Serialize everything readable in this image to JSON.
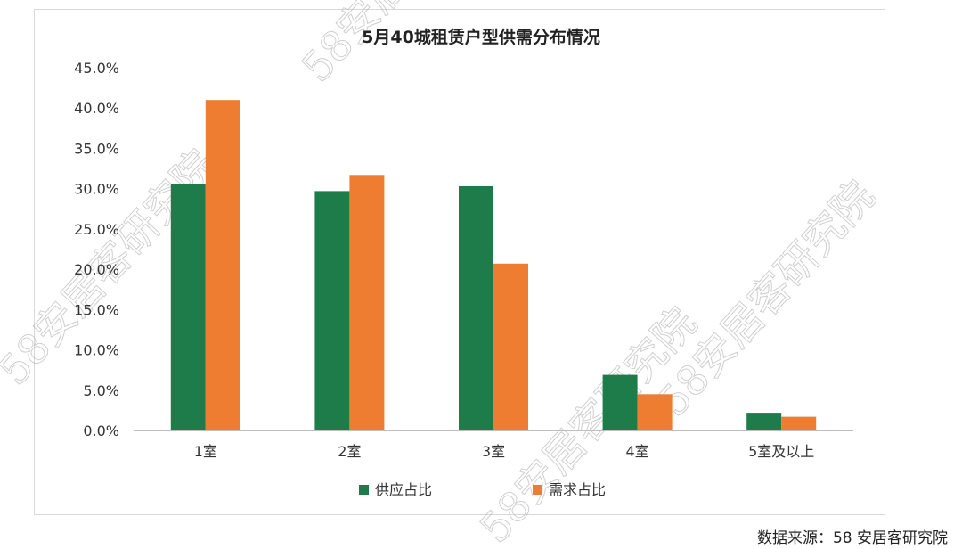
{
  "source_note": "数据来源：58 安居客研究院",
  "watermark": "58安居客研究院",
  "colors": {
    "supply": "#1e7b4a",
    "demand": "#ee7d31",
    "axis": "#bfbfbf"
  },
  "chart_data": {
    "type": "bar",
    "title": "5月40城租赁户型供需分布情况",
    "categories": [
      "1室",
      "2室",
      "3室",
      "4室",
      "5室及以上"
    ],
    "series": [
      {
        "name": "供应占比",
        "values": [
          30.6,
          29.7,
          30.3,
          6.9,
          2.2
        ]
      },
      {
        "name": "需求占比",
        "values": [
          41.0,
          31.7,
          20.7,
          4.5,
          1.7
        ]
      }
    ],
    "ylim": [
      0,
      45
    ],
    "yticks": [
      "0.0%",
      "5.0%",
      "10.0%",
      "15.0%",
      "20.0%",
      "25.0%",
      "30.0%",
      "35.0%",
      "40.0%",
      "45.0%"
    ],
    "xlabel": "",
    "ylabel": "",
    "legend_position": "bottom",
    "grid": false
  }
}
